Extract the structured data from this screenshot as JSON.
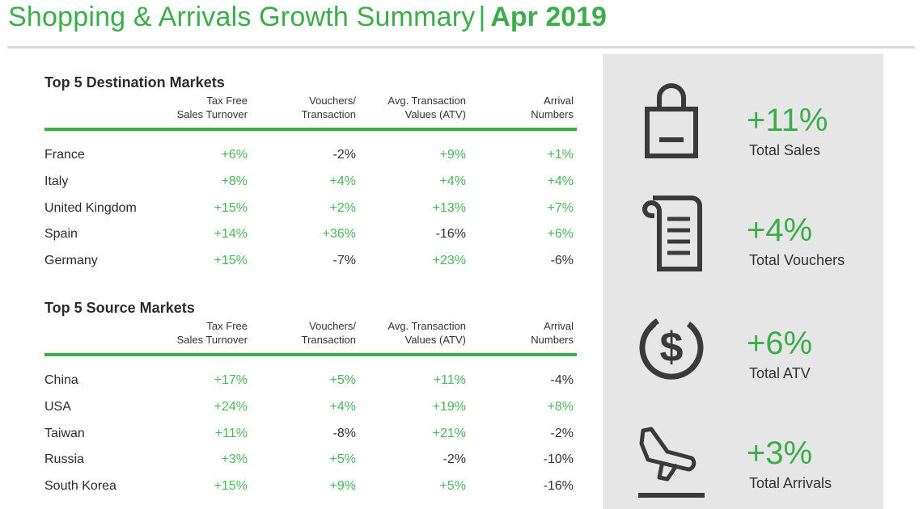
{
  "header": {
    "title": "Shopping & Arrivals Growth Summary",
    "separator": "|",
    "date": "Apr 2019"
  },
  "columns": [
    "Tax Free\nSales Turnover",
    "Vouchers/\nTransaction",
    "Avg. Transaction\nValues (ATV)",
    "Arrival\nNumbers"
  ],
  "destination": {
    "title": "Top 5 Destination Markets",
    "rows": [
      {
        "name": "France",
        "values": [
          "+6%",
          "-2%",
          "+9%",
          "+1%"
        ]
      },
      {
        "name": "Italy",
        "values": [
          "+8%",
          "+4%",
          "+4%",
          "+4%"
        ]
      },
      {
        "name": "United Kingdom",
        "values": [
          "+15%",
          "+2%",
          "+13%",
          "+7%"
        ]
      },
      {
        "name": "Spain",
        "values": [
          "+14%",
          "+36%",
          "-16%",
          "+6%"
        ]
      },
      {
        "name": "Germany",
        "values": [
          "+15%",
          "-7%",
          "+23%",
          "-6%"
        ]
      }
    ]
  },
  "source": {
    "title": "Top 5 Source Markets",
    "rows": [
      {
        "name": "China",
        "values": [
          "+17%",
          "+5%",
          "+11%",
          "-4%"
        ]
      },
      {
        "name": "USA",
        "values": [
          "+24%",
          "+4%",
          "+19%",
          "+8%"
        ]
      },
      {
        "name": "Taiwan",
        "values": [
          "+11%",
          "-8%",
          "+21%",
          "-2%"
        ]
      },
      {
        "name": "Russia",
        "values": [
          "+3%",
          "+5%",
          "-2%",
          "-10%"
        ]
      },
      {
        "name": "South Korea",
        "values": [
          "+15%",
          "+9%",
          "+5%",
          "-16%"
        ]
      }
    ]
  },
  "kpis": [
    {
      "value": "+11%",
      "label": "Total Sales",
      "icon": "shopping-bag-icon"
    },
    {
      "value": "+4%",
      "label": "Total Vouchers",
      "icon": "receipt-icon"
    },
    {
      "value": "+6%",
      "label": "Total ATV",
      "icon": "dollar-coin-icon"
    },
    {
      "value": "+3%",
      "label": "Total Arrivals",
      "icon": "plane-landing-icon"
    }
  ],
  "colors": {
    "brand_green": "#3cad4a",
    "positive": "#4cb75a",
    "negative": "#333333",
    "panel_bg": "#e6e6e6",
    "icon": "#3a3a3a"
  }
}
